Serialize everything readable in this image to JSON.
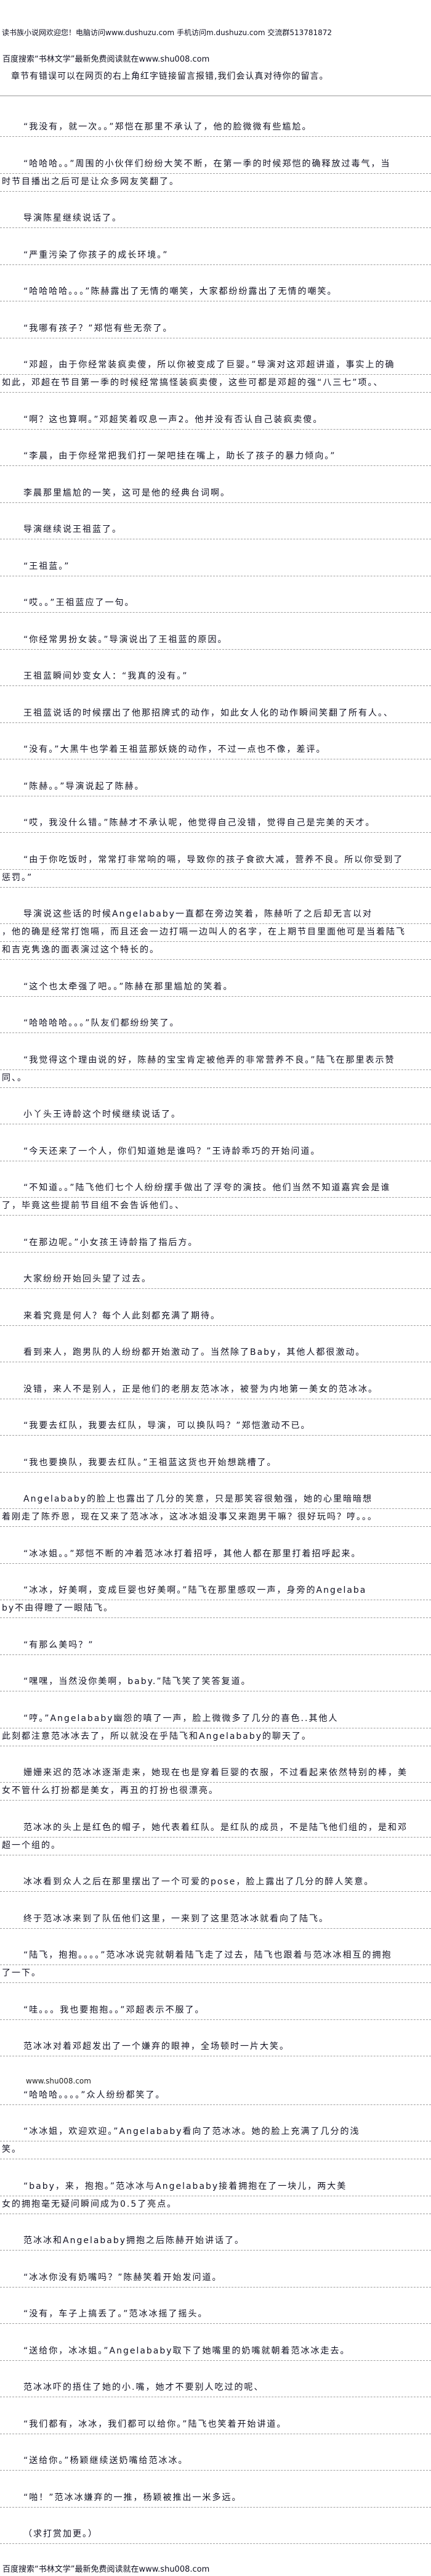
{
  "header": {
    "site_banner": "读书族小说网欢迎您！电脑访问www.dushuzu.com 手机访问m.dushuzu.com 交流群513781872",
    "search_promo": "百度搜索“书林文学”最新免费阅读就在www.shu008.com",
    "error_notice": "章节有错误可以在网页的右上角红字链接留言报错,我们会认真对待你的留言。"
  },
  "body": {
    "paragraphs": [
      {
        "lines": [
          "“我没有，就一次。。”郑恺在那里不承认了，他的脸微微有些尴尬。"
        ]
      },
      {
        "lines": [
          "“哈哈哈。。”周围的小伙伴们纷纷大笑不断，在第一季的时候郑恺的确释放过毒气，当",
          "时节目播出之后可是让众多网友笑翻了。"
        ]
      },
      {
        "lines": [
          "导演陈星继续说话了。"
        ]
      },
      {
        "lines": [
          "“严重污染了你孩子的成长环境。”"
        ]
      },
      {
        "lines": [
          "“哈哈哈哈。。。”陈赫露出了无情的嘲笑，大家都纷纷露出了无情的嘲笑。"
        ]
      },
      {
        "lines": [
          "“我哪有孩子？”郑恺有些无奈了。"
        ]
      },
      {
        "lines": [
          "“邓超，由于你经常装疯卖傻，所以你被变成了巨婴。”导演对这邓超讲道，事实上的确",
          "如此，邓超在节目第一季的时候经常搞怪装疯卖傻，这些可都是邓超的强“八三七”项。、"
        ]
      },
      {
        "lines": [
          "“啊？这也算啊。”邓超笑着叹息一声2。他并没有否认自己装疯卖傻。"
        ]
      },
      {
        "lines": [
          "“李晨，由于你经常把我们打一架吧挂在嘴上，助长了孩子的暴力倾向。”"
        ]
      },
      {
        "lines": [
          "李晨那里尴尬的一笑，这可是他的经典台词啊。"
        ]
      },
      {
        "lines": [
          "导演继续说王祖蓝了。"
        ]
      },
      {
        "lines": [
          "“王祖蓝。”"
        ]
      },
      {
        "lines": [
          "“哎。。”王祖蓝应了一句。"
        ]
      },
      {
        "lines": [
          "“你经常男扮女装。”导演说出了王祖蓝的原因。"
        ]
      },
      {
        "lines": [
          "王祖蓝瞬间妙变女人：“我真的没有。”"
        ]
      },
      {
        "lines": [
          "王祖蓝说话的时候摆出了他那招牌式的动作，如此女人化的动作瞬间笑翻了所有人。、"
        ]
      },
      {
        "lines": [
          "“没有。”大黑牛也学着王祖蓝那妖娆的动作，不过一点也不像，差评。"
        ]
      },
      {
        "lines": [
          "“陈赫。。”导演说起了陈赫。"
        ]
      },
      {
        "lines": [
          "“哎，我没什么错。”陈赫才不承认呢，他觉得自己没错，觉得自己是完美的天才。"
        ]
      },
      {
        "lines": [
          "“由于你吃饭时，常常打非常响的嗝，导致你的孩子食欲大减，营养不良。所以你受到了",
          "惩罚。”"
        ]
      },
      {
        "lines": [
          "导演说这些话的时候Angelababy一直都在旁边笑着，陈赫听了之后却无言以对",
          "，他的确是经常打饱嗝，而且还会一边打嗝一边叫人的名字，在上期节目里面他可是当着陆飞",
          "和吉克隽逸的面表演过这个特长的。"
        ]
      },
      {
        "lines": [
          "“这个也太牵强了吧。。”陈赫在那里尴尬的笑着。"
        ]
      },
      {
        "lines": [
          "“哈哈哈哈。。。”队友们都纷纷笑了。"
        ]
      },
      {
        "lines": [
          "“我觉得这个理由说的好，陈赫的宝宝肯定被他弄的非常营养不良。”陆飞在那里表示赞",
          "同、。"
        ]
      },
      {
        "lines": [
          "小丫头王诗龄这个时候继续说话了。"
        ]
      },
      {
        "lines": [
          "“今天还来了一个人，你们知道她是谁吗？”王诗龄乖巧的开始问道。"
        ]
      },
      {
        "lines": [
          "“不知道。。”陆飞他们七个人纷纷摆手做出了浮夸的演技。他们当然不知道嘉宾会是谁",
          "了，毕竟这些提前节目组不会告诉他们。、"
        ]
      },
      {
        "lines": [
          "“在那边呢。”小女孩王诗龄指了指后方。"
        ]
      },
      {
        "lines": [
          "大家纷纷开始回头望了过去。"
        ]
      },
      {
        "lines": [
          "来着究竟是何人？每个人此刻都充满了期待。"
        ]
      },
      {
        "lines": [
          "看到来人，跑男队的人纷纷都开始激动了。当然除了Baby，其他人都很激动。"
        ]
      },
      {
        "lines": [
          "没错，来人不是别人，正是他们的老朋友范冰冰，被誉为内地第一美女的范冰冰。"
        ]
      },
      {
        "lines": [
          "“我要去红队，我要去红队，导演，可以换队吗？”郑恺激动不已。"
        ]
      },
      {
        "lines": [
          "“我也要换队，我要去红队。”王祖蓝这货也开始想跳槽了。"
        ]
      },
      {
        "lines": [
          "Angelababy的脸上也露出了几分的笑意，只是那笑容很勉强，她的心里暗暗想",
          "着刚走了陈乔恩，现在又来了范冰冰，这冰冰姐没事又来跑男干嘛？很好玩吗？哼。。。"
        ]
      },
      {
        "lines": [
          "“冰冰姐。。”郑恺不断的冲着范冰冰打着招呼，其他人都在那里打着招呼起来。"
        ]
      },
      {
        "lines": [
          "“冰冰，好美啊，变成巨婴也好美啊。”陆飞在那里感叹一声，身旁的Angelaba",
          "by不由得瞪了一眼陆飞。"
        ]
      },
      {
        "lines": [
          "“有那么美吗？”"
        ]
      },
      {
        "lines": [
          "“嘿嘿，当然没你美啊，baby.”陆飞笑了笑答复道。"
        ]
      },
      {
        "lines": [
          "“哼。”Angelababy幽怨的嗔了一声，脸上微微多了几分的喜色..其他人",
          "此刻都注意范冰冰去了，所以就没在乎陆飞和Angelababy的聊天了。"
        ]
      },
      {
        "lines": [
          "姗姗来迟的范冰冰逐渐走来，她现在也是穿着巨婴的衣服，不过看起来依然特别的棒，美",
          "女不管什么打扮都是美女，再丑的打扮也很漂亮。"
        ]
      },
      {
        "lines": [
          "范冰冰的头上是红色的帽子，她代表着红队。是红队的成员，不是陆飞他们组的，是和邓",
          "超一个组的。"
        ]
      },
      {
        "lines": [
          "冰冰看到众人之后在那里摆出了一个可爱的pose，脸上露出了几分的醉人笑意。"
        ]
      },
      {
        "lines": [
          "终于范冰冰来到了队伍他们这里，一来到了这里范冰冰就看向了陆飞。"
        ]
      },
      {
        "lines": [
          "“陆飞，抱抱。。。。”范冰冰说完就朝着陆飞走了过去，陆飞也跟着与范冰冰相互的拥抱",
          "了一下。"
        ]
      },
      {
        "lines": [
          "“哇。。。我也要抱抱。。”邓超表示不服了。"
        ]
      },
      {
        "lines": [
          "范冰冰对着邓超发出了一个嫌弃的眼神，全场顿时一片大笑。"
        ]
      },
      {
        "watermark": "www.shu008.com",
        "lines": [
          "“哈哈哈。。。。”众人纷纷都笑了。"
        ]
      },
      {
        "lines": [
          "“冰冰姐，欢迎欢迎。”Angelababy看向了范冰冰。她的脸上充满了几分的浅",
          "笑。"
        ]
      },
      {
        "lines": [
          "“baby，来，抱抱。”范冰冰与Angelababy接着拥抱在了一块儿，两大美",
          "女的拥抱毫无疑问瞬间成为0.5了亮点。"
        ]
      },
      {
        "lines": [
          "范冰冰和Angelababy拥抱之后陈赫开始讲话了。"
        ]
      },
      {
        "lines": [
          "“冰冰你没有奶嘴吗？”陈赫笑着开始发问道。"
        ]
      },
      {
        "lines": [
          "“没有，车子上搞丢了。”范冰冰摇了摇头。"
        ]
      },
      {
        "lines": [
          "“送给你，冰冰姐。”Angelababy取下了她嘴里的奶嘴就朝着范冰冰走去。"
        ]
      },
      {
        "lines": [
          "范冰冰吓的捂住了她的小.嘴，她才不要别人吃过的呢、"
        ]
      },
      {
        "lines": [
          "“我们都有，冰冰，我们都可以给你。”陆飞也笑着开始讲道。"
        ]
      },
      {
        "lines": [
          "“送给你。”杨颖继续送奶嘴给范冰冰。"
        ]
      },
      {
        "lines": [
          "“啪！”范冰冰嫌弃的一推，杨颖被推出一米多远。"
        ]
      },
      {
        "lines": [
          "（求打赏加更。）"
        ]
      }
    ]
  },
  "footer": {
    "search_promo": "百度搜索“书林文学”最新免费阅读就在www.shu008.com"
  }
}
